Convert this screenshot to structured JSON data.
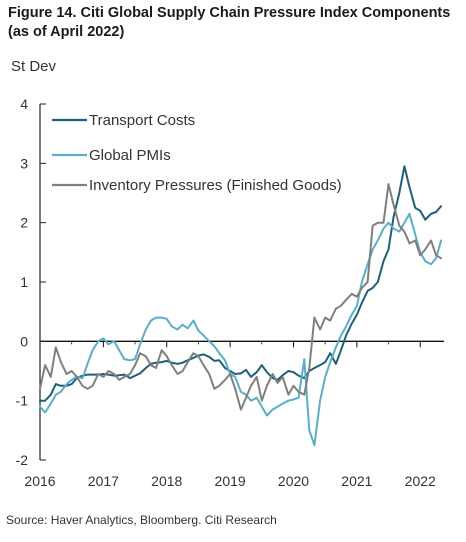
{
  "figure": {
    "title": "Figure 14. Citi Global Supply Chain Pressure Index Components (as of April 2022)",
    "source": "Source: Haver Analytics, Bloomberg. Citi Research"
  },
  "chart_data": {
    "type": "line",
    "title": "Figure 14. Citi Global Supply Chain Pressure Index Components (as of April 2022)",
    "ylabel": "St Dev",
    "xlabel": "",
    "ylim": [
      -2,
      4
    ],
    "xlim": [
      2016,
      2022.375
    ],
    "yticks": [
      "-2",
      "-1",
      "0",
      "1",
      "2",
      "3",
      "4"
    ],
    "xticks": [
      "2016",
      "2017",
      "2018",
      "2019",
      "2020",
      "2021",
      "2022"
    ],
    "legend_position": "top-left",
    "grid": false,
    "series": [
      {
        "name": "Transport Costs",
        "color": "#1f5f7a",
        "points": [
          [
            2016.0,
            -1.0
          ],
          [
            2016.08,
            -1.0
          ],
          [
            2016.17,
            -0.9
          ],
          [
            2016.25,
            -0.72
          ],
          [
            2016.33,
            -0.75
          ],
          [
            2016.42,
            -0.75
          ],
          [
            2016.5,
            -0.72
          ],
          [
            2016.58,
            -0.62
          ],
          [
            2016.67,
            -0.58
          ],
          [
            2016.75,
            -0.56
          ],
          [
            2016.83,
            -0.56
          ],
          [
            2016.92,
            -0.56
          ],
          [
            2017.0,
            -0.55
          ],
          [
            2017.08,
            -0.56
          ],
          [
            2017.17,
            -0.58
          ],
          [
            2017.25,
            -0.57
          ],
          [
            2017.33,
            -0.56
          ],
          [
            2017.42,
            -0.62
          ],
          [
            2017.5,
            -0.58
          ],
          [
            2017.58,
            -0.54
          ],
          [
            2017.67,
            -0.45
          ],
          [
            2017.75,
            -0.38
          ],
          [
            2017.83,
            -0.36
          ],
          [
            2017.92,
            -0.35
          ],
          [
            2018.0,
            -0.33
          ],
          [
            2018.08,
            -0.36
          ],
          [
            2018.17,
            -0.38
          ],
          [
            2018.25,
            -0.36
          ],
          [
            2018.33,
            -0.32
          ],
          [
            2018.42,
            -0.28
          ],
          [
            2018.5,
            -0.24
          ],
          [
            2018.58,
            -0.22
          ],
          [
            2018.67,
            -0.26
          ],
          [
            2018.75,
            -0.33
          ],
          [
            2018.83,
            -0.32
          ],
          [
            2018.92,
            -0.45
          ],
          [
            2019.0,
            -0.5
          ],
          [
            2019.08,
            -0.55
          ],
          [
            2019.17,
            -0.54
          ],
          [
            2019.25,
            -0.48
          ],
          [
            2019.33,
            -0.6
          ],
          [
            2019.42,
            -0.52
          ],
          [
            2019.5,
            -0.4
          ],
          [
            2019.58,
            -0.52
          ],
          [
            2019.67,
            -0.62
          ],
          [
            2019.75,
            -0.65
          ],
          [
            2019.83,
            -0.57
          ],
          [
            2019.92,
            -0.5
          ],
          [
            2020.0,
            -0.52
          ],
          [
            2020.08,
            -0.58
          ],
          [
            2020.17,
            -0.62
          ],
          [
            2020.25,
            -0.5
          ],
          [
            2020.33,
            -0.45
          ],
          [
            2020.42,
            -0.4
          ],
          [
            2020.5,
            -0.35
          ],
          [
            2020.58,
            -0.2
          ],
          [
            2020.67,
            -0.38
          ],
          [
            2020.75,
            -0.15
          ],
          [
            2020.83,
            0.1
          ],
          [
            2020.92,
            0.3
          ],
          [
            2021.0,
            0.45
          ],
          [
            2021.08,
            0.65
          ],
          [
            2021.17,
            0.85
          ],
          [
            2021.25,
            0.9
          ],
          [
            2021.33,
            1.0
          ],
          [
            2021.42,
            1.35
          ],
          [
            2021.5,
            1.55
          ],
          [
            2021.58,
            2.1
          ],
          [
            2021.67,
            2.5
          ],
          [
            2021.75,
            2.95
          ],
          [
            2021.83,
            2.6
          ],
          [
            2021.92,
            2.25
          ],
          [
            2022.0,
            2.2
          ],
          [
            2022.08,
            2.05
          ],
          [
            2022.17,
            2.15
          ],
          [
            2022.25,
            2.18
          ],
          [
            2022.33,
            2.28
          ]
        ]
      },
      {
        "name": "Global PMIs",
        "color": "#5aaec6",
        "points": [
          [
            2016.0,
            -1.1
          ],
          [
            2016.08,
            -1.2
          ],
          [
            2016.17,
            -1.05
          ],
          [
            2016.25,
            -0.9
          ],
          [
            2016.33,
            -0.85
          ],
          [
            2016.42,
            -0.72
          ],
          [
            2016.5,
            -0.65
          ],
          [
            2016.58,
            -0.6
          ],
          [
            2016.67,
            -0.62
          ],
          [
            2016.75,
            -0.38
          ],
          [
            2016.83,
            -0.15
          ],
          [
            2016.92,
            0.0
          ],
          [
            2017.0,
            0.05
          ],
          [
            2017.08,
            -0.05
          ],
          [
            2017.17,
            0.0
          ],
          [
            2017.25,
            -0.15
          ],
          [
            2017.33,
            -0.3
          ],
          [
            2017.42,
            -0.32
          ],
          [
            2017.5,
            -0.3
          ],
          [
            2017.58,
            -0.05
          ],
          [
            2017.67,
            0.2
          ],
          [
            2017.75,
            0.35
          ],
          [
            2017.83,
            0.4
          ],
          [
            2017.92,
            0.4
          ],
          [
            2018.0,
            0.38
          ],
          [
            2018.08,
            0.25
          ],
          [
            2018.17,
            0.2
          ],
          [
            2018.25,
            0.28
          ],
          [
            2018.33,
            0.22
          ],
          [
            2018.42,
            0.35
          ],
          [
            2018.5,
            0.18
          ],
          [
            2018.58,
            0.1
          ],
          [
            2018.67,
            0.0
          ],
          [
            2018.75,
            -0.08
          ],
          [
            2018.83,
            -0.2
          ],
          [
            2018.92,
            -0.32
          ],
          [
            2019.0,
            -0.55
          ],
          [
            2019.08,
            -0.6
          ],
          [
            2019.17,
            -0.85
          ],
          [
            2019.25,
            -0.9
          ],
          [
            2019.33,
            -1.0
          ],
          [
            2019.42,
            -0.95
          ],
          [
            2019.5,
            -1.1
          ],
          [
            2019.58,
            -1.25
          ],
          [
            2019.67,
            -1.15
          ],
          [
            2019.75,
            -1.1
          ],
          [
            2019.83,
            -1.05
          ],
          [
            2019.92,
            -1.0
          ],
          [
            2020.0,
            -0.98
          ],
          [
            2020.08,
            -0.95
          ],
          [
            2020.17,
            -0.3
          ],
          [
            2020.25,
            -1.5
          ],
          [
            2020.33,
            -1.75
          ],
          [
            2020.42,
            -1.0
          ],
          [
            2020.5,
            -0.6
          ],
          [
            2020.58,
            -0.35
          ],
          [
            2020.67,
            -0.1
          ],
          [
            2020.75,
            0.1
          ],
          [
            2020.83,
            0.25
          ],
          [
            2020.92,
            0.45
          ],
          [
            2021.0,
            0.6
          ],
          [
            2021.08,
            1.0
          ],
          [
            2021.17,
            1.3
          ],
          [
            2021.25,
            1.55
          ],
          [
            2021.33,
            1.7
          ],
          [
            2021.42,
            1.9
          ],
          [
            2021.5,
            2.0
          ],
          [
            2021.58,
            1.9
          ],
          [
            2021.67,
            1.85
          ],
          [
            2021.75,
            2.0
          ],
          [
            2021.83,
            2.15
          ],
          [
            2021.92,
            1.8
          ],
          [
            2022.0,
            1.5
          ],
          [
            2022.08,
            1.35
          ],
          [
            2022.17,
            1.3
          ],
          [
            2022.25,
            1.4
          ],
          [
            2022.33,
            1.7
          ]
        ]
      },
      {
        "name": "Inventory Pressures (Finished Goods)",
        "color": "#7f7f7f",
        "points": [
          [
            2016.0,
            -0.8
          ],
          [
            2016.08,
            -0.4
          ],
          [
            2016.17,
            -0.6
          ],
          [
            2016.25,
            -0.1
          ],
          [
            2016.33,
            -0.35
          ],
          [
            2016.42,
            -0.55
          ],
          [
            2016.5,
            -0.5
          ],
          [
            2016.58,
            -0.6
          ],
          [
            2016.67,
            -0.75
          ],
          [
            2016.75,
            -0.8
          ],
          [
            2016.83,
            -0.75
          ],
          [
            2016.92,
            -0.55
          ],
          [
            2017.0,
            -0.6
          ],
          [
            2017.08,
            -0.5
          ],
          [
            2017.17,
            -0.55
          ],
          [
            2017.25,
            -0.65
          ],
          [
            2017.33,
            -0.6
          ],
          [
            2017.42,
            -0.55
          ],
          [
            2017.5,
            -0.4
          ],
          [
            2017.58,
            -0.2
          ],
          [
            2017.67,
            -0.25
          ],
          [
            2017.75,
            -0.4
          ],
          [
            2017.83,
            -0.45
          ],
          [
            2017.92,
            -0.15
          ],
          [
            2018.0,
            -0.25
          ],
          [
            2018.08,
            -0.4
          ],
          [
            2018.17,
            -0.55
          ],
          [
            2018.25,
            -0.5
          ],
          [
            2018.33,
            -0.35
          ],
          [
            2018.42,
            -0.2
          ],
          [
            2018.5,
            -0.25
          ],
          [
            2018.58,
            -0.4
          ],
          [
            2018.67,
            -0.55
          ],
          [
            2018.75,
            -0.8
          ],
          [
            2018.83,
            -0.75
          ],
          [
            2018.92,
            -0.65
          ],
          [
            2019.0,
            -0.55
          ],
          [
            2019.08,
            -0.8
          ],
          [
            2019.17,
            -1.15
          ],
          [
            2019.25,
            -0.95
          ],
          [
            2019.33,
            -0.75
          ],
          [
            2019.42,
            -0.6
          ],
          [
            2019.5,
            -1.0
          ],
          [
            2019.58,
            -0.75
          ],
          [
            2019.67,
            -0.55
          ],
          [
            2019.75,
            -0.7
          ],
          [
            2019.83,
            -0.6
          ],
          [
            2019.92,
            -0.9
          ],
          [
            2020.0,
            -0.75
          ],
          [
            2020.08,
            -0.85
          ],
          [
            2020.17,
            -0.9
          ],
          [
            2020.25,
            -0.45
          ],
          [
            2020.33,
            0.4
          ],
          [
            2020.42,
            0.2
          ],
          [
            2020.5,
            0.4
          ],
          [
            2020.58,
            0.35
          ],
          [
            2020.67,
            0.55
          ],
          [
            2020.75,
            0.6
          ],
          [
            2020.83,
            0.7
          ],
          [
            2020.92,
            0.8
          ],
          [
            2021.0,
            0.75
          ],
          [
            2021.08,
            0.9
          ],
          [
            2021.17,
            1.0
          ],
          [
            2021.25,
            1.95
          ],
          [
            2021.33,
            2.0
          ],
          [
            2021.42,
            2.0
          ],
          [
            2021.5,
            2.65
          ],
          [
            2021.58,
            2.3
          ],
          [
            2021.67,
            1.95
          ],
          [
            2021.75,
            1.85
          ],
          [
            2021.83,
            1.65
          ],
          [
            2021.92,
            1.7
          ],
          [
            2022.0,
            1.45
          ],
          [
            2022.08,
            1.55
          ],
          [
            2022.17,
            1.7
          ],
          [
            2022.25,
            1.45
          ],
          [
            2022.33,
            1.4
          ]
        ]
      }
    ]
  }
}
